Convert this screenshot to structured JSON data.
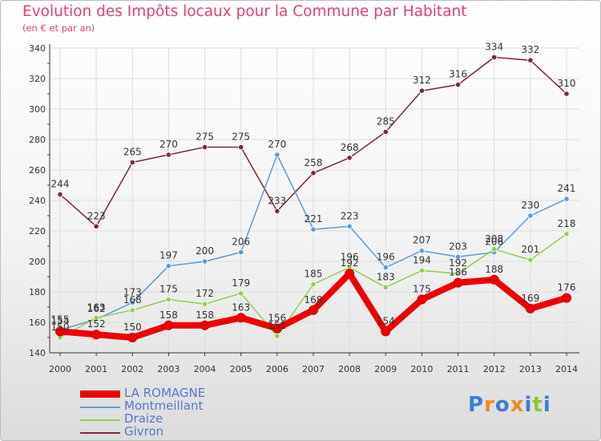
{
  "title": "Evolution des Impôts locaux pour la Commune par Habitant",
  "subtitle": "(en € et par an)",
  "logo_text": "Proxiti",
  "colors": {
    "title": "#e0407a",
    "grid": "#dddddd",
    "axis": "#333333",
    "label": "#333333"
  },
  "chart_data": {
    "type": "line",
    "x": [
      2000,
      2001,
      2002,
      2003,
      2004,
      2005,
      2006,
      2007,
      2008,
      2009,
      2010,
      2011,
      2012,
      2013,
      2014
    ],
    "ylim": [
      140,
      340
    ],
    "yticks": [
      140,
      160,
      180,
      200,
      220,
      240,
      260,
      280,
      300,
      320,
      340
    ],
    "grid": true,
    "legend_position": "bottom-left",
    "series": [
      {
        "name": "LA ROMAGNE",
        "color": "#ee0000",
        "values": [
          154,
          152,
          150,
          158,
          158,
          163,
          156,
          168,
          192,
          154,
          175,
          186,
          188,
          169,
          176
        ],
        "labels": [
          "154",
          "152",
          "150",
          "158",
          "158",
          "163",
          "156",
          "168",
          "192",
          "154",
          "175",
          "186",
          "188",
          "169",
          "176"
        ]
      },
      {
        "name": "Montmeillant",
        "color": "#5b9bd5",
        "values": [
          155,
          162,
          173,
          197,
          200,
          206,
          270,
          221,
          223,
          196,
          207,
          203,
          206,
          230,
          241
        ],
        "labels": [
          "155",
          "162",
          "173",
          "197",
          "200",
          "206",
          "270",
          "221",
          "223",
          "196",
          "207",
          "203",
          "206",
          "230",
          "241"
        ]
      },
      {
        "name": "Draize",
        "color": "#8fd050",
        "values": [
          150,
          163,
          168,
          175,
          172,
          179,
          151,
          185,
          196,
          183,
          194,
          192,
          208,
          201,
          218
        ],
        "labels": [
          "150",
          "163",
          "168",
          "175",
          "172",
          "179",
          "151",
          "185",
          "196",
          "183",
          "194",
          "192",
          "208",
          "201",
          "218"
        ]
      },
      {
        "name": "Givron",
        "color": "#7a2a35",
        "values": [
          244,
          223,
          265,
          270,
          275,
          275,
          233,
          258,
          268,
          285,
          312,
          316,
          334,
          332,
          310
        ],
        "labels": [
          "244",
          "223",
          "265",
          "270",
          "275",
          "275",
          "233",
          "258",
          "268",
          "285",
          "312",
          "316",
          "334",
          "332",
          "310"
        ]
      }
    ]
  }
}
